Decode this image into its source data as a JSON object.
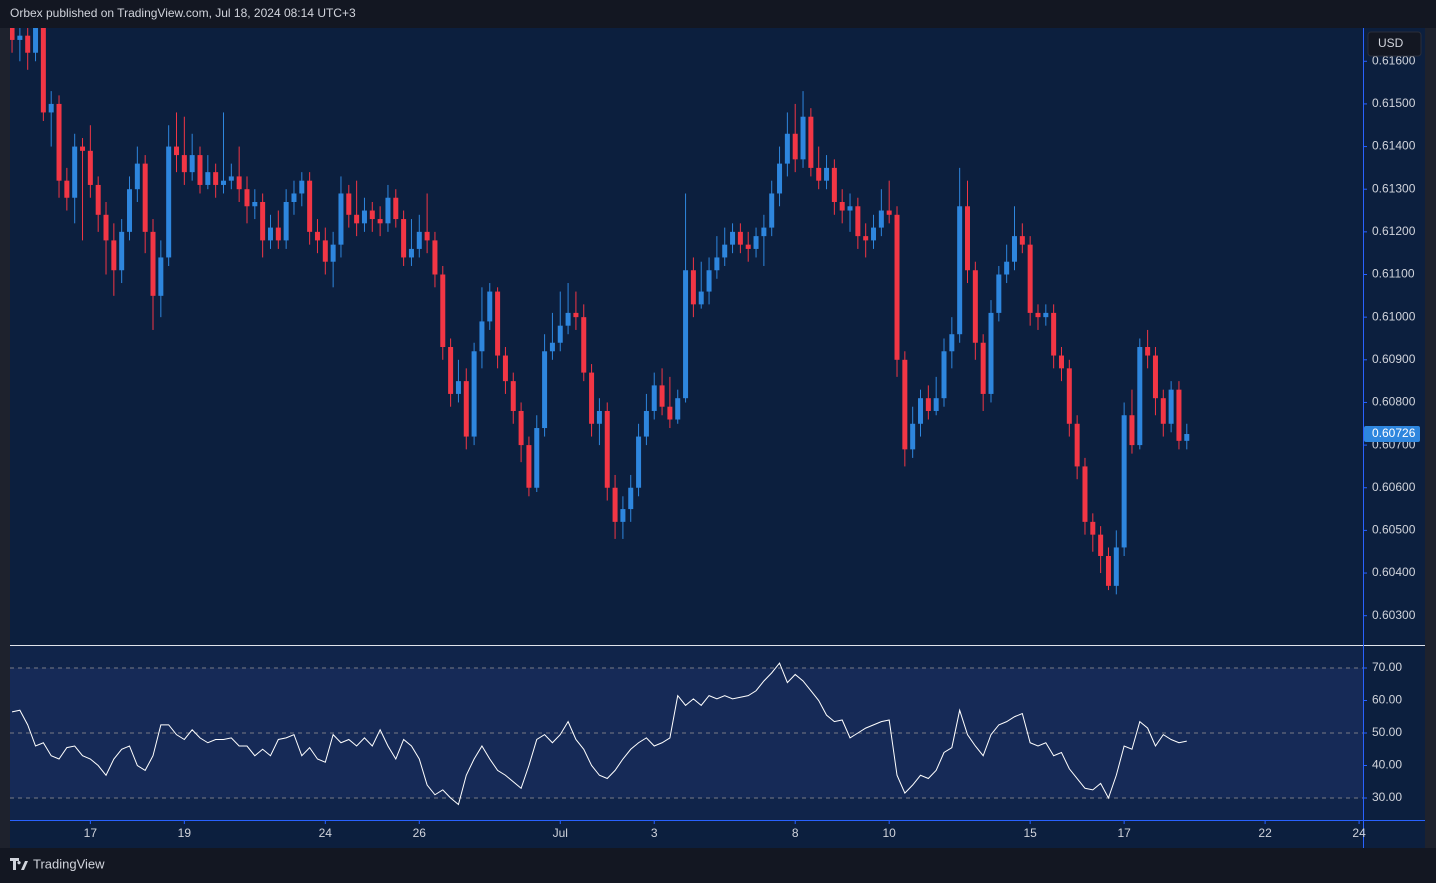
{
  "header": "Orbex published on TradingView.com, Jul 18, 2024 08:14 UTC+3",
  "brand": "TradingView",
  "chart_data": [
    {
      "type": "candlestick",
      "currency": "USD",
      "up_color": "#2e86de",
      "down_color": "#f23645",
      "last_price": 0.60726,
      "xlim": [
        -0.26,
        172.5
      ],
      "xticks": [
        {
          "value": 10,
          "label": "17"
        },
        {
          "value": 22,
          "label": "19"
        },
        {
          "value": 40,
          "label": "24"
        },
        {
          "value": 52,
          "label": "26"
        },
        {
          "value": 70,
          "label": "Jul"
        },
        {
          "value": 82,
          "label": "3"
        },
        {
          "value": 100,
          "label": "8"
        },
        {
          "value": 112,
          "label": "10"
        },
        {
          "value": 130,
          "label": "15"
        },
        {
          "value": 142,
          "label": "17"
        },
        {
          "value": 160,
          "label": "22"
        },
        {
          "value": 172,
          "label": "24"
        }
      ],
      "ylim": [
        0.60243,
        0.61678
      ],
      "yticks": [
        {
          "value": 0.603,
          "label": "0.60300"
        },
        {
          "value": 0.604,
          "label": "0.60400"
        },
        {
          "value": 0.605,
          "label": "0.60500"
        },
        {
          "value": 0.606,
          "label": "0.60600"
        },
        {
          "value": 0.607,
          "label": "0.60700"
        },
        {
          "value": 0.608,
          "label": "0.60800"
        },
        {
          "value": 0.609,
          "label": "0.60900"
        },
        {
          "value": 0.61,
          "label": "0.61000"
        },
        {
          "value": 0.611,
          "label": "0.61100"
        },
        {
          "value": 0.612,
          "label": "0.61200"
        },
        {
          "value": 0.613,
          "label": "0.61300"
        },
        {
          "value": 0.614,
          "label": "0.61400"
        },
        {
          "value": 0.615,
          "label": "0.61500"
        },
        {
          "value": 0.616,
          "label": "0.61600"
        }
      ],
      "open": [
        0.617,
        0.6165,
        0.6166,
        0.6162,
        0.6168,
        0.6148,
        0.615,
        0.6132,
        0.6128,
        0.614,
        0.6139,
        0.6131,
        0.6124,
        0.6118,
        0.6111,
        0.612,
        0.613,
        0.6136,
        0.612,
        0.6105,
        0.6114,
        0.614,
        0.6138,
        0.6134,
        0.6138,
        0.6131,
        0.6134,
        0.6131,
        0.6132,
        0.6133,
        0.613,
        0.6126,
        0.6127,
        0.6118,
        0.6121,
        0.6118,
        0.6127,
        0.6129,
        0.6132,
        0.612,
        0.6118,
        0.6113,
        0.6117,
        0.6129,
        0.6124,
        0.6122,
        0.6125,
        0.6123,
        0.6122,
        0.6128,
        0.6123,
        0.6114,
        0.6116,
        0.612,
        0.6118,
        0.611,
        0.6093,
        0.6082,
        0.6085,
        0.6072,
        0.6092,
        0.6099,
        0.6106,
        0.6091,
        0.6085,
        0.6078,
        0.607,
        0.606,
        0.6074,
        0.6092,
        0.6094,
        0.6098,
        0.6101,
        0.61,
        0.6087,
        0.6075,
        0.6078,
        0.606,
        0.6052,
        0.6055,
        0.606,
        0.6072,
        0.6078,
        0.6084,
        0.6079,
        0.6076,
        0.6081,
        0.6111,
        0.6103,
        0.6106,
        0.6111,
        0.6114,
        0.6117,
        0.612,
        0.6117,
        0.6116,
        0.6119,
        0.6121,
        0.6129,
        0.6136,
        0.6143,
        0.6137,
        0.6147,
        0.6135,
        0.6132,
        0.6135,
        0.6127,
        0.6125,
        0.6126,
        0.6119,
        0.6118,
        0.6121,
        0.6125,
        0.6124,
        0.609,
        0.6069,
        0.6075,
        0.6081,
        0.6078,
        0.6081,
        0.6092,
        0.6096,
        0.6126,
        0.6111,
        0.6094,
        0.6082,
        0.6101,
        0.611,
        0.6113,
        0.6119,
        0.6117,
        0.6101,
        0.61,
        0.6101,
        0.6091,
        0.6088,
        0.6075,
        0.6065,
        0.6052,
        0.6049,
        0.6044,
        0.6037,
        0.6046,
        0.6077,
        0.607,
        0.6093,
        0.6091,
        0.6081,
        0.6075,
        0.6083,
        0.6071
      ],
      "high": [
        0.6175,
        0.6172,
        0.617,
        0.6172,
        0.617,
        0.6153,
        0.6152,
        0.6135,
        0.6143,
        0.6142,
        0.6145,
        0.6133,
        0.6127,
        0.6122,
        0.6123,
        0.6133,
        0.614,
        0.6138,
        0.6123,
        0.6118,
        0.6145,
        0.6148,
        0.6147,
        0.6143,
        0.614,
        0.6138,
        0.6136,
        0.6148,
        0.6136,
        0.614,
        0.6133,
        0.613,
        0.6129,
        0.6124,
        0.6125,
        0.613,
        0.6132,
        0.6134,
        0.6134,
        0.6123,
        0.6121,
        0.612,
        0.6133,
        0.6131,
        0.6132,
        0.6128,
        0.6127,
        0.6126,
        0.6131,
        0.613,
        0.6125,
        0.6123,
        0.6124,
        0.6129,
        0.612,
        0.6112,
        0.6095,
        0.609,
        0.6088,
        0.6094,
        0.6107,
        0.6108,
        0.6107,
        0.6093,
        0.6087,
        0.608,
        0.6072,
        0.6077,
        0.6096,
        0.6101,
        0.6106,
        0.6108,
        0.6106,
        0.6103,
        0.6089,
        0.6081,
        0.608,
        0.6063,
        0.6058,
        0.6063,
        0.6075,
        0.6082,
        0.6087,
        0.6088,
        0.6086,
        0.6083,
        0.6129,
        0.6114,
        0.6113,
        0.6114,
        0.6119,
        0.6121,
        0.6122,
        0.6122,
        0.612,
        0.6121,
        0.6124,
        0.6132,
        0.614,
        0.6148,
        0.615,
        0.6153,
        0.6149,
        0.614,
        0.6138,
        0.6137,
        0.613,
        0.6129,
        0.6128,
        0.6122,
        0.6124,
        0.613,
        0.6132,
        0.6126,
        0.6092,
        0.6079,
        0.6083,
        0.6084,
        0.6086,
        0.6095,
        0.61,
        0.6135,
        0.6132,
        0.6113,
        0.6096,
        0.6104,
        0.6112,
        0.6117,
        0.6126,
        0.6122,
        0.6119,
        0.6103,
        0.6103,
        0.6103,
        0.6093,
        0.609,
        0.6077,
        0.6067,
        0.6054,
        0.6051,
        0.6046,
        0.605,
        0.608,
        0.6083,
        0.6095,
        0.6097,
        0.6093,
        0.6083,
        0.6085,
        0.6085,
        0.6075
      ],
      "low": [
        0.6162,
        0.616,
        0.6158,
        0.616,
        0.6146,
        0.614,
        0.6128,
        0.6125,
        0.6122,
        0.6118,
        0.6128,
        0.612,
        0.611,
        0.6105,
        0.6108,
        0.6118,
        0.6127,
        0.6115,
        0.6097,
        0.61,
        0.6112,
        0.6134,
        0.6131,
        0.6132,
        0.6129,
        0.613,
        0.6128,
        0.6129,
        0.613,
        0.6127,
        0.6122,
        0.6123,
        0.6114,
        0.6116,
        0.6116,
        0.6116,
        0.6124,
        0.6126,
        0.6117,
        0.6115,
        0.611,
        0.6107,
        0.6114,
        0.6121,
        0.6119,
        0.612,
        0.612,
        0.6119,
        0.612,
        0.6121,
        0.6112,
        0.6112,
        0.6114,
        0.6115,
        0.6107,
        0.609,
        0.6079,
        0.608,
        0.6069,
        0.607,
        0.6088,
        0.6097,
        0.6088,
        0.6082,
        0.6075,
        0.6066,
        0.6058,
        0.6059,
        0.6072,
        0.609,
        0.6092,
        0.6096,
        0.6097,
        0.6085,
        0.6072,
        0.607,
        0.6057,
        0.6048,
        0.6048,
        0.6052,
        0.6058,
        0.607,
        0.6076,
        0.6077,
        0.6074,
        0.6075,
        0.608,
        0.61,
        0.6102,
        0.6103,
        0.6109,
        0.6112,
        0.6115,
        0.6115,
        0.6113,
        0.6114,
        0.6112,
        0.6119,
        0.6126,
        0.6133,
        0.6134,
        0.6135,
        0.6133,
        0.613,
        0.613,
        0.6124,
        0.6122,
        0.612,
        0.6116,
        0.6114,
        0.6116,
        0.6119,
        0.6122,
        0.6086,
        0.6065,
        0.6067,
        0.6072,
        0.6076,
        0.6077,
        0.6079,
        0.6088,
        0.6094,
        0.6108,
        0.609,
        0.6078,
        0.608,
        0.6099,
        0.6108,
        0.6111,
        0.6115,
        0.6098,
        0.6097,
        0.6098,
        0.6088,
        0.6085,
        0.6072,
        0.6062,
        0.6049,
        0.6045,
        0.604,
        0.6036,
        0.6035,
        0.6044,
        0.6068,
        0.6069,
        0.6088,
        0.6077,
        0.6072,
        0.6073,
        0.6069,
        0.6069
      ],
      "close": [
        0.6165,
        0.6166,
        0.6162,
        0.6168,
        0.6148,
        0.615,
        0.6132,
        0.6128,
        0.614,
        0.6139,
        0.6131,
        0.6124,
        0.6118,
        0.6111,
        0.612,
        0.613,
        0.6136,
        0.612,
        0.6105,
        0.6114,
        0.614,
        0.6138,
        0.6134,
        0.6138,
        0.6131,
        0.6134,
        0.6131,
        0.6132,
        0.6133,
        0.613,
        0.6126,
        0.6127,
        0.6118,
        0.6121,
        0.6118,
        0.6127,
        0.6129,
        0.6132,
        0.612,
        0.6118,
        0.6113,
        0.6117,
        0.6129,
        0.6124,
        0.6122,
        0.6125,
        0.6123,
        0.6122,
        0.6128,
        0.6123,
        0.6114,
        0.6116,
        0.612,
        0.6118,
        0.611,
        0.6093,
        0.6082,
        0.6085,
        0.6072,
        0.6092,
        0.6099,
        0.6106,
        0.6091,
        0.6085,
        0.6078,
        0.607,
        0.606,
        0.6074,
        0.6092,
        0.6094,
        0.6098,
        0.6101,
        0.61,
        0.6087,
        0.6075,
        0.6078,
        0.606,
        0.6052,
        0.6055,
        0.606,
        0.6072,
        0.6078,
        0.6084,
        0.6079,
        0.6076,
        0.6081,
        0.6111,
        0.6103,
        0.6106,
        0.6111,
        0.6114,
        0.6117,
        0.612,
        0.6117,
        0.6116,
        0.6119,
        0.6121,
        0.6129,
        0.6136,
        0.6143,
        0.6137,
        0.6147,
        0.6135,
        0.6132,
        0.6135,
        0.6127,
        0.6125,
        0.6126,
        0.6119,
        0.6118,
        0.6121,
        0.6125,
        0.6124,
        0.609,
        0.6069,
        0.6075,
        0.6081,
        0.6078,
        0.6081,
        0.6092,
        0.6096,
        0.6126,
        0.6111,
        0.6094,
        0.6082,
        0.6101,
        0.611,
        0.6113,
        0.6119,
        0.6117,
        0.6101,
        0.61,
        0.6101,
        0.6091,
        0.6088,
        0.6075,
        0.6065,
        0.6052,
        0.6049,
        0.6044,
        0.6037,
        0.6046,
        0.6077,
        0.607,
        0.6093,
        0.6091,
        0.6081,
        0.6075,
        0.6083,
        0.6071,
        0.60726
      ]
    },
    {
      "type": "line",
      "color": "#ffffff",
      "ylim": [
        23.85,
        76.15
      ],
      "yticks": [
        {
          "value": 30,
          "label": "30.00"
        },
        {
          "value": 40,
          "label": "40.00"
        },
        {
          "value": 50,
          "label": "50.00"
        },
        {
          "value": 60,
          "label": "60.00"
        },
        {
          "value": 70,
          "label": "70.00"
        }
      ],
      "levels": [
        70,
        50,
        30
      ],
      "values": [
        56.5,
        57,
        52.5,
        46,
        47,
        43,
        42,
        45.5,
        46,
        43,
        42,
        40,
        37,
        42,
        45,
        46,
        40,
        38.5,
        43,
        52.5,
        52.5,
        49.5,
        48,
        51,
        48.5,
        47,
        48,
        48,
        48.5,
        46,
        46,
        43,
        45,
        43,
        48,
        48.5,
        49.5,
        43,
        45.5,
        42,
        41,
        49.5,
        47,
        48,
        46,
        48.5,
        46,
        51,
        46,
        42,
        48,
        46,
        42,
        34,
        31,
        32.5,
        30,
        28,
        37,
        42,
        46,
        42,
        38.5,
        37,
        35,
        33,
        40,
        48,
        49.5,
        47,
        49.5,
        53.5,
        48,
        45,
        40,
        37,
        36,
        38.5,
        42,
        45,
        47,
        48.5,
        46,
        47,
        48.5,
        61.5,
        58.5,
        60.5,
        58.5,
        61.5,
        60.5,
        61.5,
        60.5,
        61,
        61.5,
        63,
        66,
        68.5,
        71.5,
        65.5,
        68,
        66,
        63,
        60,
        55.5,
        53.5,
        54,
        48.5,
        50,
        51.5,
        52.5,
        53.5,
        54,
        37,
        31.5,
        34,
        37,
        36,
        38.5,
        44,
        45.5,
        57,
        49.5,
        46,
        43,
        49.5,
        52.5,
        53.5,
        55,
        56,
        47,
        46,
        47,
        43,
        44,
        39,
        36,
        33,
        32.5,
        34.5,
        30,
        37,
        46,
        45,
        53.5,
        51.5,
        46,
        49.5,
        48,
        47,
        47.5
      ]
    }
  ]
}
